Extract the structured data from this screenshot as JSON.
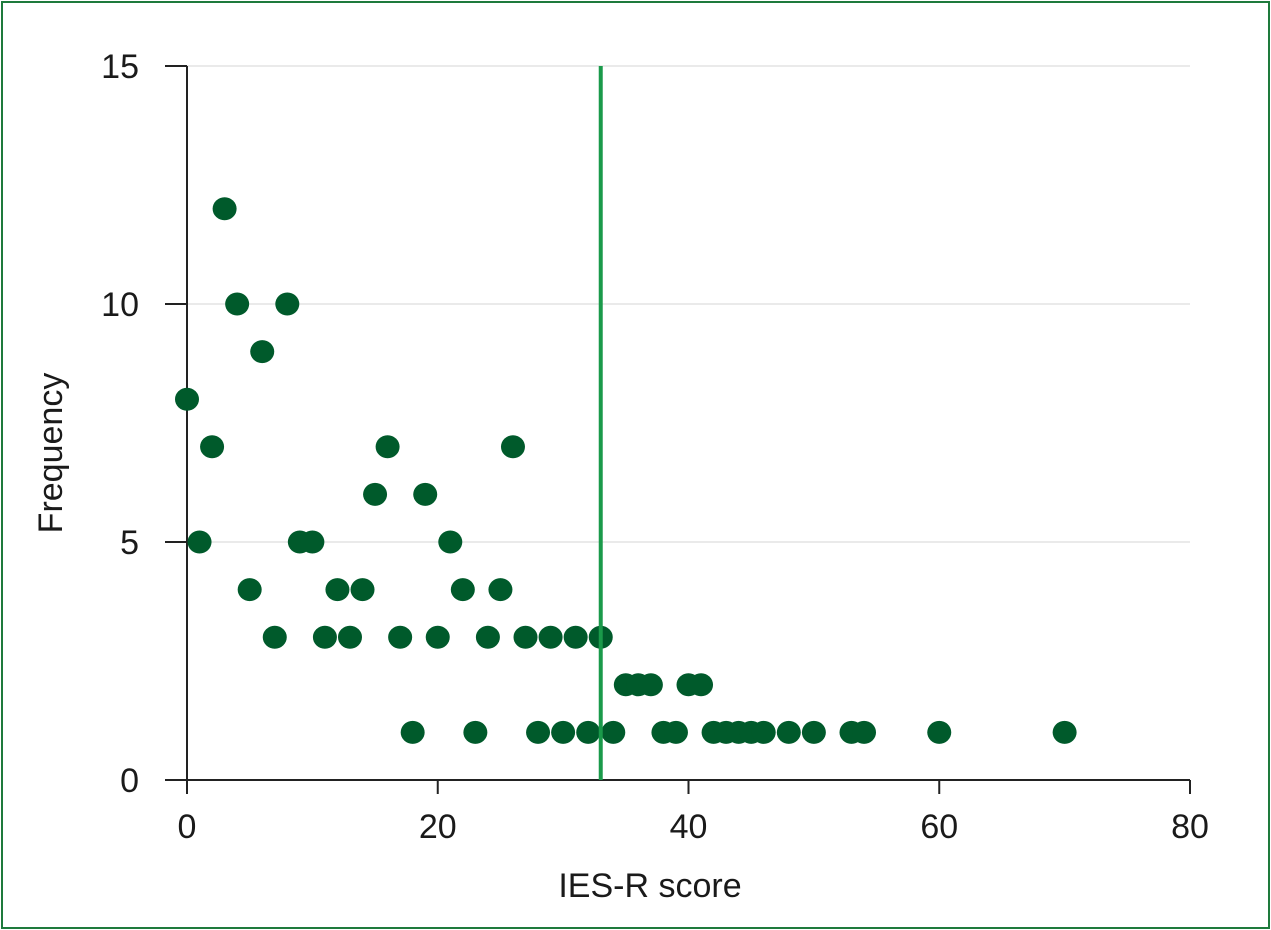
{
  "chart_data": {
    "type": "scatter",
    "title": "",
    "xlabel": "IES-R score",
    "ylabel": "Frequency",
    "xlim": [
      0,
      80
    ],
    "ylim": [
      0,
      15
    ],
    "xticks": [
      "0",
      "20",
      "40",
      "60",
      "80"
    ],
    "yticks": [
      "0",
      "5",
      "10",
      "15"
    ],
    "grid": "horizontal",
    "reference_line_x": 33,
    "colors": {
      "points": "#005a2b",
      "reference_line": "#1a9a4a",
      "grid": "#e3e3e3",
      "axis": "#222222",
      "frame": "#1e7a3c"
    },
    "points": [
      {
        "x": 0,
        "y": 8
      },
      {
        "x": 1,
        "y": 5
      },
      {
        "x": 2,
        "y": 7
      },
      {
        "x": 3,
        "y": 12
      },
      {
        "x": 4,
        "y": 10
      },
      {
        "x": 5,
        "y": 4
      },
      {
        "x": 6,
        "y": 9
      },
      {
        "x": 7,
        "y": 3
      },
      {
        "x": 8,
        "y": 10
      },
      {
        "x": 9,
        "y": 5
      },
      {
        "x": 10,
        "y": 5
      },
      {
        "x": 11,
        "y": 3
      },
      {
        "x": 12,
        "y": 4
      },
      {
        "x": 13,
        "y": 3
      },
      {
        "x": 14,
        "y": 4
      },
      {
        "x": 15,
        "y": 6
      },
      {
        "x": 16,
        "y": 7
      },
      {
        "x": 17,
        "y": 3
      },
      {
        "x": 18,
        "y": 1
      },
      {
        "x": 19,
        "y": 6
      },
      {
        "x": 20,
        "y": 3
      },
      {
        "x": 21,
        "y": 5
      },
      {
        "x": 22,
        "y": 4
      },
      {
        "x": 23,
        "y": 1
      },
      {
        "x": 24,
        "y": 3
      },
      {
        "x": 25,
        "y": 4
      },
      {
        "x": 26,
        "y": 7
      },
      {
        "x": 27,
        "y": 3
      },
      {
        "x": 28,
        "y": 1
      },
      {
        "x": 29,
        "y": 3
      },
      {
        "x": 30,
        "y": 1
      },
      {
        "x": 31,
        "y": 3
      },
      {
        "x": 32,
        "y": 1
      },
      {
        "x": 33,
        "y": 3
      },
      {
        "x": 34,
        "y": 1
      },
      {
        "x": 35,
        "y": 2
      },
      {
        "x": 36,
        "y": 2
      },
      {
        "x": 37,
        "y": 2
      },
      {
        "x": 38,
        "y": 1
      },
      {
        "x": 39,
        "y": 1
      },
      {
        "x": 40,
        "y": 2
      },
      {
        "x": 41,
        "y": 2
      },
      {
        "x": 42,
        "y": 1
      },
      {
        "x": 43,
        "y": 1
      },
      {
        "x": 44,
        "y": 1
      },
      {
        "x": 45,
        "y": 1
      },
      {
        "x": 46,
        "y": 1
      },
      {
        "x": 48,
        "y": 1
      },
      {
        "x": 50,
        "y": 1
      },
      {
        "x": 53,
        "y": 1
      },
      {
        "x": 54,
        "y": 1
      },
      {
        "x": 60,
        "y": 1
      },
      {
        "x": 70,
        "y": 1
      }
    ]
  }
}
